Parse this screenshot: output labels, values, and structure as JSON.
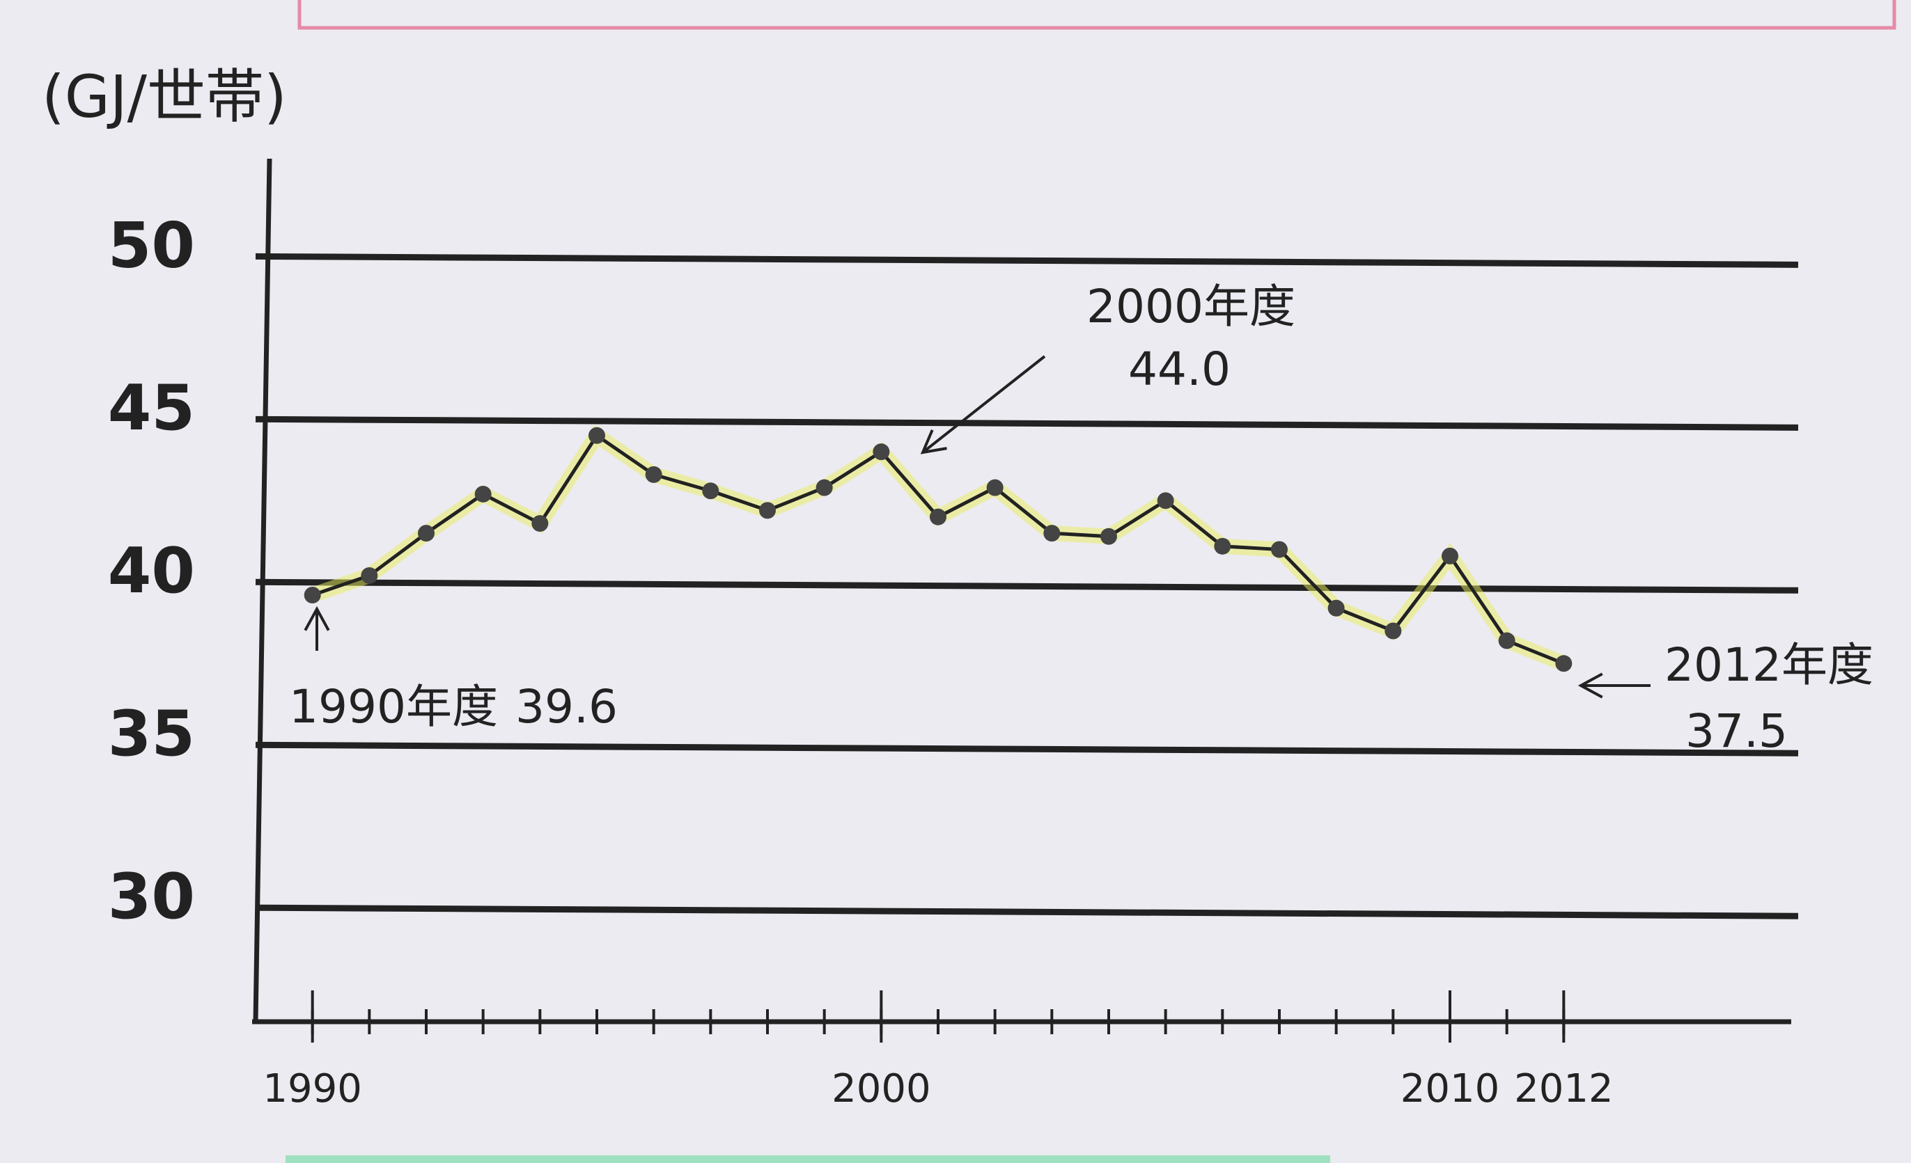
{
  "chart_data": {
    "type": "line",
    "y_label": "(GJ/世帯)",
    "x": [
      1990,
      1991,
      1992,
      1993,
      1994,
      1995,
      1996,
      1997,
      1998,
      1999,
      2000,
      2001,
      2002,
      2003,
      2004,
      2005,
      2006,
      2007,
      2008,
      2009,
      2010,
      2011,
      2012
    ],
    "series": [
      {
        "color": "#222222",
        "values": [
          39.6,
          40.2,
          41.5,
          42.7,
          41.8,
          44.5,
          43.3,
          42.8,
          42.2,
          42.9,
          44.0,
          42.0,
          42.9,
          41.5,
          41.4,
          42.5,
          41.1,
          41.0,
          39.2,
          38.5,
          40.8,
          38.2,
          37.5
        ]
      }
    ],
    "xlim": [
      1989,
      2016
    ],
    "xticks": [
      1990,
      2000,
      2010,
      2012
    ],
    "ylim": [
      26.5,
      53
    ],
    "yticks": [
      30,
      35,
      40,
      45,
      50
    ],
    "grid": true,
    "annotations": [
      [
        "1990年度",
        "39.6"
      ],
      [
        "2000年度",
        "44.0"
      ],
      [
        "2012年度",
        "37.5"
      ]
    ]
  }
}
